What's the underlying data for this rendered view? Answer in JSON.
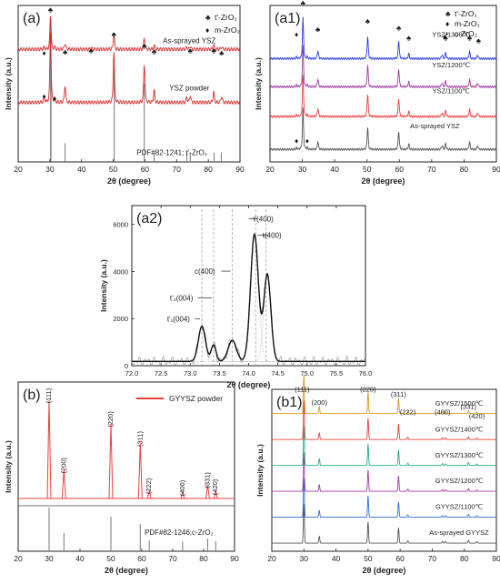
{
  "chart_data": [
    {
      "id": "a",
      "type": "line",
      "panel_label": "(a)",
      "xlabel": "2θ (degree)",
      "ylabel": "Intensity (a.u.)",
      "xlim": [
        20,
        90
      ],
      "xticks": [
        20,
        30,
        40,
        50,
        60,
        70,
        80,
        90
      ],
      "legend": [
        {
          "symbol": "♣",
          "text": "t'-ZrO₂"
        },
        {
          "symbol": "♦",
          "text": "m-ZrO₂"
        }
      ],
      "ref_lines": [
        30.3,
        34.8,
        50.3,
        59.8,
        62.9,
        73.2,
        74.3,
        81.8,
        84.1
      ],
      "series": [
        {
          "name": "As-sprayed YSZ",
          "color": "#d62728",
          "baseline": 0.72,
          "peaks": [
            [
              28.2,
              0.05
            ],
            [
              30.2,
              1.0
            ],
            [
              31.5,
              0.06
            ],
            [
              34.8,
              0.18
            ],
            [
              43.0,
              0.04
            ],
            [
              50.2,
              0.42
            ],
            [
              59.8,
              0.34
            ],
            [
              62.9,
              0.1
            ],
            [
              73.2,
              0.07
            ],
            [
              74.3,
              0.09
            ],
            [
              81.7,
              0.12
            ],
            [
              84.2,
              0.07
            ]
          ]
        },
        {
          "name": "YSZ powder",
          "color": "#d62728",
          "baseline": 0.38,
          "peaks": [
            [
              28.2,
              0.08
            ],
            [
              30.2,
              1.0
            ],
            [
              31.5,
              0.05
            ],
            [
              34.8,
              0.24
            ],
            [
              50.2,
              0.71
            ],
            [
              59.8,
              0.53
            ],
            [
              62.9,
              0.17
            ],
            [
              73.2,
              0.08
            ],
            [
              74.3,
              0.1
            ],
            [
              81.7,
              0.15
            ],
            [
              84.2,
              0.09
            ]
          ]
        }
      ],
      "annotations": {
        "clubs": [
          [
            30.2,
            0.955
          ],
          [
            50.2,
            0.8
          ],
          [
            59.8,
            0.725
          ],
          [
            62.9,
            0.69
          ],
          [
            43.0,
            0.695
          ],
          [
            74.3,
            0.695
          ],
          [
            81.7,
            0.695
          ],
          [
            84.2,
            0.68
          ],
          [
            34.8,
            0.685
          ]
        ],
        "diamonds": [
          [
            28.2,
            0.68
          ],
          [
            28.2,
            0.405
          ],
          [
            31.5,
            0.39
          ]
        ],
        "series_labels": [
          {
            "text": "As-sprayed YSZ",
            "x": 74,
            "y": 0.76
          },
          {
            "text": "YSZ powder",
            "x": 74,
            "y": 0.455
          }
        ],
        "ref_label": {
          "text": "PDF#82-1241; t'-ZrO₂",
          "x": 68.5,
          "y": 0.045
        }
      }
    },
    {
      "id": "a1",
      "type": "line",
      "panel_label": "(a1)",
      "xlabel": "2θ (degree)",
      "ylabel": "Intensity (a.u.)",
      "xlim": [
        20,
        90
      ],
      "xticks": [
        20,
        30,
        40,
        50,
        60,
        70,
        80,
        90
      ],
      "legend": [
        {
          "symbol": "♣",
          "text": "t'-ZrO₂"
        },
        {
          "symbol": "♦",
          "text": "m-ZrO₂"
        },
        {
          "symbol": "•",
          "text": "c-ZrO₂"
        }
      ],
      "series": [
        {
          "name": "As-sprayed YSZ",
          "color": "#555555",
          "baseline": 0.08
        },
        {
          "name": "YSZ/1100℃",
          "color": "#e8413c",
          "baseline": 0.29
        },
        {
          "name": "YSZ/1200℃",
          "color": "#a23ba1",
          "baseline": 0.48
        },
        {
          "name": "YSZ/1300℃",
          "color": "#2b3fe0",
          "baseline": 0.66
        }
      ],
      "peaks": [
        [
          28.2,
          0.04
        ],
        [
          30.2,
          1.0
        ],
        [
          31.5,
          0.04
        ],
        [
          34.8,
          0.2
        ],
        [
          50.2,
          0.55
        ],
        [
          59.8,
          0.45
        ],
        [
          62.9,
          0.12
        ],
        [
          73.2,
          0.1
        ],
        [
          74.3,
          0.14
        ],
        [
          81.7,
          0.18
        ],
        [
          84.2,
          0.09
        ]
      ],
      "annotations": {
        "clubs": [
          [
            30.2,
            1.0
          ],
          [
            34.8,
            0.83
          ],
          [
            50.2,
            0.885
          ],
          [
            59.8,
            0.84
          ],
          [
            62.9,
            0.775
          ],
          [
            74.3,
            0.775
          ],
          [
            81.7,
            0.775
          ],
          [
            84.5,
            0.76
          ]
        ],
        "diamonds": [
          [
            28.2,
            0.8
          ],
          [
            28.2,
            0.12
          ],
          [
            31.5,
            0.12
          ],
          [
            74.0,
            0.785
          ]
        ],
        "series_labels": [
          {
            "text": "YSZ/1300℃",
            "x": 76,
            "y": 0.8
          },
          {
            "text": "YSZ/1200℃",
            "x": 76,
            "y": 0.605
          },
          {
            "text": "YSZ/1100℃",
            "x": 76,
            "y": 0.44
          },
          {
            "text": "As-sprayed YSZ",
            "x": 71,
            "y": 0.215
          }
        ]
      }
    },
    {
      "id": "a2",
      "type": "line",
      "panel_label": "(a2)",
      "xlabel": "2θ (degree)",
      "ylabel": "Intensity (a.u.)",
      "xlim": [
        72.0,
        76.0
      ],
      "ylim": [
        0,
        6800
      ],
      "xticks": [
        72.0,
        72.5,
        73.0,
        73.5,
        74.0,
        74.5,
        75.0,
        75.5,
        76.0
      ],
      "yticks": [
        0,
        2000,
        4000,
        6000
      ],
      "dashed_lines": [
        73.2,
        73.4,
        73.72,
        74.12,
        74.3
      ],
      "fit_peaks": [
        [
          73.2,
          1500,
          0.085
        ],
        [
          73.4,
          700,
          0.06
        ],
        [
          73.72,
          900,
          0.1
        ],
        [
          74.1,
          5400,
          0.095
        ],
        [
          74.32,
          3700,
          0.085
        ]
      ],
      "annotations": [
        {
          "text": "t'(400)",
          "x": 74.25,
          "y": 6120,
          "arrow_to": 74.12
        },
        {
          "text": "t(400)",
          "x": 74.4,
          "y": 5420,
          "arrow_to": 74.3
        },
        {
          "text": "c(400)",
          "x": 73.25,
          "y": 3900,
          "arrow_to": 73.72
        },
        {
          "text": "t'₂(004)",
          "x": 72.85,
          "y": 2770,
          "arrow_to": 73.4
        },
        {
          "text": "t'₁(004)",
          "x": 72.8,
          "y": 1880,
          "arrow_to": 73.2
        }
      ]
    },
    {
      "id": "b",
      "type": "bar",
      "panel_label": "(b)",
      "xlabel": "2θ (degree)",
      "ylabel": "Intensity (a.u.)",
      "xlim": [
        20,
        90
      ],
      "xticks": [
        20,
        30,
        40,
        50,
        60,
        70,
        80,
        90
      ],
      "legend": [
        {
          "text": "GYYSZ powder",
          "color": "#e8413c"
        }
      ],
      "peaks": [
        {
          "x": 30.0,
          "h": 1.0,
          "label": "(111)"
        },
        {
          "x": 34.8,
          "h": 0.29,
          "label": "(200)"
        },
        {
          "x": 50.0,
          "h": 0.76,
          "label": "(220)"
        },
        {
          "x": 59.5,
          "h": 0.56,
          "label": "(311)"
        },
        {
          "x": 62.4,
          "h": 0.08,
          "label": "(222)"
        },
        {
          "x": 73.2,
          "h": 0.06,
          "label": "(400)"
        },
        {
          "x": 81.3,
          "h": 0.14,
          "label": "(331)"
        },
        {
          "x": 83.9,
          "h": 0.07,
          "label": "(420)"
        }
      ],
      "ref_lines": [
        30.0,
        34.8,
        50.0,
        59.5,
        62.4,
        73.2,
        81.3,
        83.9
      ],
      "ref_label": "PDF#82-1246;c-ZrO₂"
    },
    {
      "id": "b1",
      "type": "line",
      "panel_label": "(b1)",
      "xlabel": "2θ (degree)",
      "ylabel": "Intensity (a.u.)",
      "xlim": [
        20,
        90
      ],
      "xticks": [
        20,
        30,
        40,
        50,
        60,
        70,
        80,
        90
      ],
      "hkl": [
        {
          "x": 30.0,
          "label": "(111)"
        },
        {
          "x": 34.8,
          "label": "(200)"
        },
        {
          "x": 50.0,
          "label": "(220)"
        },
        {
          "x": 59.5,
          "label": "(311)"
        },
        {
          "x": 62.4,
          "label": "(222)"
        },
        {
          "x": 73.2,
          "label": "(400)"
        },
        {
          "x": 81.3,
          "label": "(331)"
        },
        {
          "x": 83.9,
          "label": "(420)"
        }
      ],
      "series": [
        {
          "name": "As-sprayed GYYSZ",
          "color": "#555555",
          "baseline": 0.05
        },
        {
          "name": "GYYSZ/1100℃",
          "color": "#2b6fd6",
          "baseline": 0.21
        },
        {
          "name": "GYYSZ/1200℃",
          "color": "#a23ba1",
          "baseline": 0.37
        },
        {
          "name": "GYYSZ/1300℃",
          "color": "#1faa84",
          "baseline": 0.53
        },
        {
          "name": "GYYSZ/1400℃",
          "color": "#e8413c",
          "baseline": 0.69
        },
        {
          "name": "GYYSZ/1500℃",
          "color": "#d99a14",
          "baseline": 0.85
        }
      ],
      "peaks": [
        [
          30.0,
          1.0
        ],
        [
          34.8,
          0.18
        ],
        [
          50.0,
          0.55
        ],
        [
          59.5,
          0.4
        ],
        [
          62.4,
          0.06
        ],
        [
          73.2,
          0.05
        ],
        [
          74.2,
          0.04
        ],
        [
          81.3,
          0.07
        ],
        [
          83.9,
          0.04
        ]
      ]
    }
  ]
}
